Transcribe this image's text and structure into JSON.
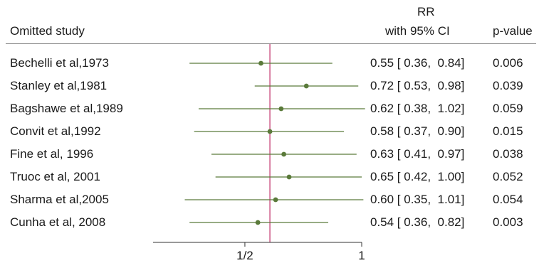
{
  "header": {
    "study_col": "Omitted study",
    "est_col_line1": "RR",
    "est_col_line2": "with 95% CI",
    "p_col": "p-value"
  },
  "chart_data": {
    "type": "forest",
    "xscale": "log",
    "xlim": [
      0.29,
      1.0
    ],
    "x_ticks": [
      {
        "value": 0.5,
        "label": "1/2"
      },
      {
        "value": 1.0,
        "label": "1"
      }
    ],
    "reference_line": 0.58,
    "colors": {
      "point": "#5a7a3a",
      "line": "#5a7a3a",
      "reference": "#c0306a"
    },
    "rows": [
      {
        "study": "Bechelli et al,1973",
        "rr": 0.55,
        "lo": 0.36,
        "hi": 0.84,
        "ci_text": "0.55 [ 0.36,  0.84]",
        "p": "0.006"
      },
      {
        "study": "Stanley et al,1981",
        "rr": 0.72,
        "lo": 0.53,
        "hi": 0.98,
        "ci_text": "0.72 [ 0.53,  0.98]",
        "p": "0.039"
      },
      {
        "study": "Bagshawe et al,1989",
        "rr": 0.62,
        "lo": 0.38,
        "hi": 1.02,
        "ci_text": "0.62 [ 0.38,  1.02]",
        "p": "0.059"
      },
      {
        "study": "Convit et al,1992",
        "rr": 0.58,
        "lo": 0.37,
        "hi": 0.9,
        "ci_text": "0.58 [ 0.37,  0.90]",
        "p": "0.015"
      },
      {
        "study": "Fine et al, 1996",
        "rr": 0.63,
        "lo": 0.41,
        "hi": 0.97,
        "ci_text": "0.63 [ 0.41,  0.97]",
        "p": "0.038"
      },
      {
        "study": "Truoc et al, 2001",
        "rr": 0.65,
        "lo": 0.42,
        "hi": 1.0,
        "ci_text": "0.65 [ 0.42,  1.00]",
        "p": "0.052"
      },
      {
        "study": "Sharma et al,2005",
        "rr": 0.6,
        "lo": 0.35,
        "hi": 1.01,
        "ci_text": "0.60 [ 0.35,  1.01]",
        "p": "0.054"
      },
      {
        "study": "Cunha et al, 2008",
        "rr": 0.54,
        "lo": 0.36,
        "hi": 0.82,
        "ci_text": "0.54 [ 0.36,  0.82]",
        "p": "0.003"
      }
    ]
  }
}
